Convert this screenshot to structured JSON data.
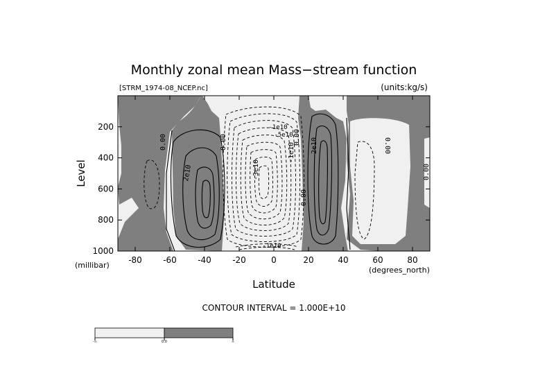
{
  "chart_data": {
    "type": "contour",
    "title": "Monthly zonal mean Mass−stream function",
    "file_label": "[STRM_1974-08_NCEP.nc]",
    "units_label": "(units:kg/s)",
    "xlabel": "Latitude",
    "ylabel": "Level",
    "x_units": "(degrees_north)",
    "y_units": "(millibar)",
    "xlim": [
      -90,
      90
    ],
    "ylim": [
      1000,
      0
    ],
    "x_ticks": [
      -80,
      -60,
      -40,
      -20,
      0,
      20,
      40,
      60,
      80
    ],
    "y_ticks": [
      200,
      400,
      600,
      800,
      1000
    ],
    "contour_interval_text": "CONTOUR INTERVAL = 1.000E+10",
    "contour_labels": [
      "0.00",
      "0.00",
      "2e10",
      "0.00",
      "-1e10",
      "-5e10",
      "-3e10",
      "-1e10",
      "0.00",
      "2e10",
      "0.00",
      "0.00",
      "-1e10"
    ],
    "fill_colors": {
      "negative": "#f0f0f0",
      "positive": "#7f7f7f"
    },
    "colorbar": {
      "tick_labels": [
        "-∞",
        "0.0",
        "∞"
      ]
    }
  }
}
